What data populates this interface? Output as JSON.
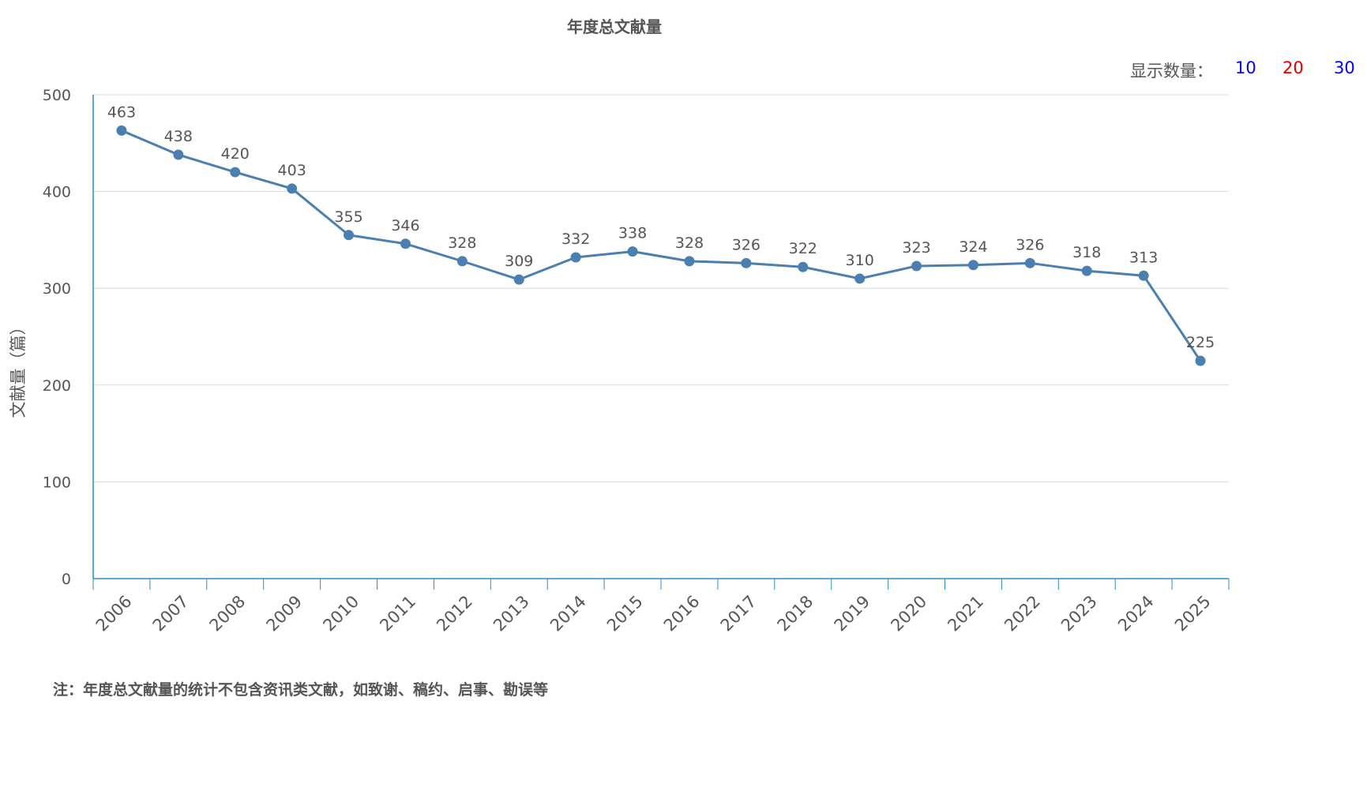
{
  "title": "年度总文献量",
  "count_selector": {
    "label": "显示数量：",
    "options": [
      {
        "label": "10",
        "color": "#0000ff"
      },
      {
        "label": "20",
        "color": "#e60000"
      },
      {
        "label": "30",
        "color": "#0000ff"
      }
    ]
  },
  "footnote": "注：年度总文献量的统计不包含资讯类文献，如致谢、稿约、启事、勘误等",
  "colors": {
    "line": "#4a7fb0",
    "axis": "#2b8fc4",
    "grid": "#d9d9d9",
    "text": "#555555"
  },
  "chart_data": {
    "type": "line",
    "title": "年度总文献量",
    "xlabel": "",
    "ylabel": "文献量（篇）",
    "ylim": [
      0,
      500
    ],
    "yticks": [
      0,
      100,
      200,
      300,
      400,
      500
    ],
    "grid": true,
    "categories": [
      "2006",
      "2007",
      "2008",
      "2009",
      "2010",
      "2011",
      "2012",
      "2013",
      "2014",
      "2015",
      "2016",
      "2017",
      "2018",
      "2019",
      "2020",
      "2021",
      "2022",
      "2023",
      "2024",
      "2025"
    ],
    "values": [
      463,
      438,
      420,
      403,
      355,
      346,
      328,
      309,
      332,
      338,
      328,
      326,
      322,
      310,
      323,
      324,
      326,
      318,
      313,
      225
    ]
  }
}
